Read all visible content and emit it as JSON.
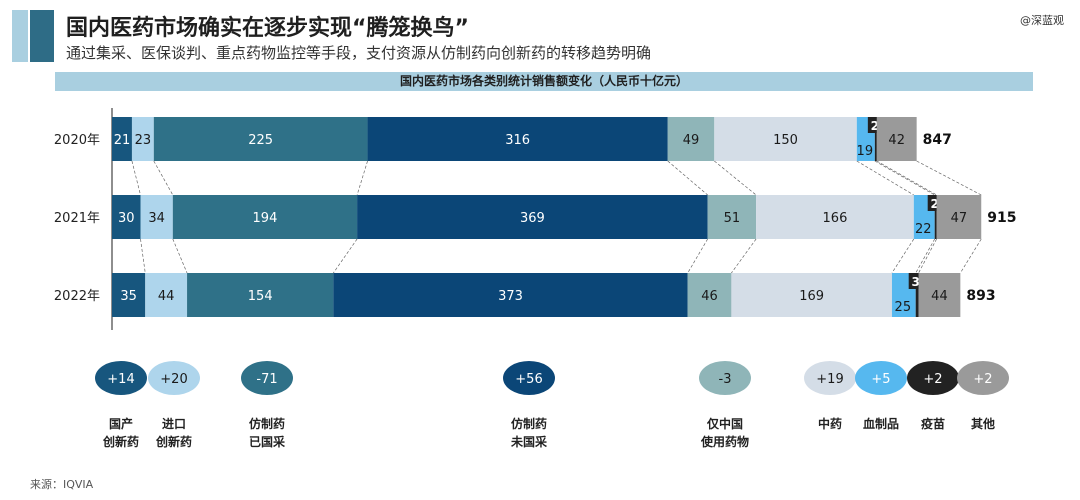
{
  "title": "国内医药市场确实在逐步实现“腾笼换鸟”",
  "subtitle": "通过集采、医保谈判、重点药物监控等手段，支付资源从仿制药向创新药的转移趋势明确",
  "watermark": "@深蓝观",
  "source": "来源：IQVIA",
  "chart_data": {
    "type": "bar",
    "orientation": "horizontal-stacked",
    "title": "国内医药市场各类别统计销售额变化（人民币十亿元）",
    "categories": [
      "2020年",
      "2021年",
      "2022年"
    ],
    "totals": [
      847,
      915,
      893
    ],
    "series": [
      {
        "name": "国产创新药",
        "label_lines": [
          "国产",
          "创新药"
        ],
        "values": [
          21,
          30,
          35
        ],
        "change": "+14",
        "color": "#17567e"
      },
      {
        "name": "进口创新药",
        "label_lines": [
          "进口",
          "创新药"
        ],
        "values": [
          23,
          34,
          44
        ],
        "change": "+20",
        "color": "#aed5ec"
      },
      {
        "name": "仿制药已国采",
        "label_lines": [
          "仿制药",
          "已国采"
        ],
        "values": [
          225,
          194,
          154
        ],
        "change": "-71",
        "color": "#2f7188"
      },
      {
        "name": "仿制药未国采",
        "label_lines": [
          "仿制药",
          "未国采"
        ],
        "values": [
          316,
          369,
          373
        ],
        "change": "+56",
        "color": "#0b4677"
      },
      {
        "name": "仅中国使用药物",
        "label_lines": [
          "仅中国",
          "使用药物"
        ],
        "values": [
          49,
          51,
          46
        ],
        "change": "-3",
        "color": "#8fb5b8"
      },
      {
        "name": "中药",
        "label_lines": [
          "中药"
        ],
        "values": [
          150,
          166,
          169
        ],
        "change": "+19",
        "color": "#d4dde7"
      },
      {
        "name": "血制品",
        "label_lines": [
          "血制品"
        ],
        "values": [
          19,
          22,
          25
        ],
        "change": "+5",
        "color": "#56b8ef"
      },
      {
        "name": "疫苗",
        "label_lines": [
          "疫苗"
        ],
        "values": [
          2,
          2,
          3
        ],
        "change": "+2",
        "color": "#222222"
      },
      {
        "name": "其他",
        "label_lines": [
          "其他"
        ],
        "values": [
          42,
          47,
          44
        ],
        "change": "+2",
        "color": "#9a9a9a"
      }
    ]
  }
}
